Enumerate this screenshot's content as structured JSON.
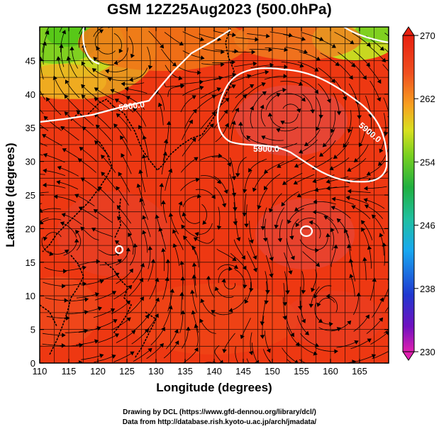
{
  "title": "GSM 12Z25Aug2023 (500.0hPa)",
  "xlabel": "Longitude (degrees)",
  "ylabel": "Latitude  (degrees)",
  "x_ticks": [
    "110",
    "115",
    "120",
    "125",
    "130",
    "135",
    "140",
    "145",
    "150",
    "155",
    "160",
    "165"
  ],
  "y_ticks": [
    "0",
    "5",
    "10",
    "15",
    "20",
    "25",
    "30",
    "35",
    "40",
    "45"
  ],
  "colorbar": {
    "ticks": [
      "230",
      "238",
      "246",
      "254",
      "262",
      "270"
    ],
    "colors": [
      "#e020b0",
      "#7010c0",
      "#2040d0",
      "#18b0f0",
      "#20c0a0",
      "#20b040",
      "#78d020",
      "#d8e020",
      "#f8a020",
      "#f05020",
      "#e82010"
    ]
  },
  "contours": [
    {
      "label": "5900.0"
    },
    {
      "label": "5900.0"
    },
    {
      "label": "5900.0"
    }
  ],
  "credits": {
    "line1": "Drawing by DCL (https://www.gfd-dennou.org/library/dcl/)",
    "line2": "Data from http://database.rish.kyoto-u.ac.jp/arch/jmadata/"
  },
  "map": {
    "lon_range": [
      110,
      170
    ],
    "lat_range": [
      0,
      50
    ],
    "field": "temperature",
    "vectors": "streamlines"
  }
}
